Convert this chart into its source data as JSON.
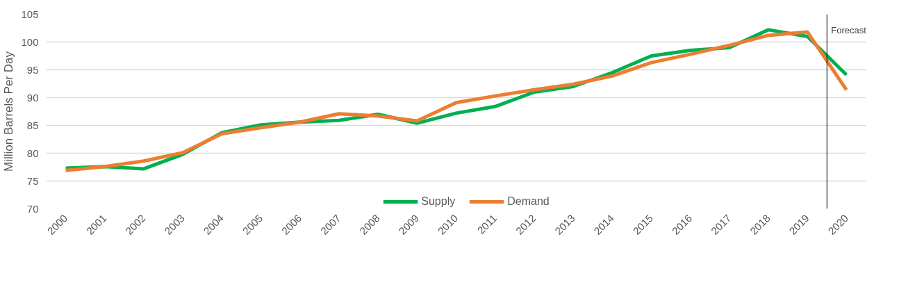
{
  "chart_data": {
    "type": "line",
    "ylabel": "Million Barrels Per Day",
    "x": [
      2000,
      2001,
      2002,
      2003,
      2004,
      2005,
      2006,
      2007,
      2008,
      2009,
      2010,
      2011,
      2012,
      2013,
      2014,
      2015,
      2016,
      2017,
      2018,
      2019,
      2020
    ],
    "series": [
      {
        "name": "Supply",
        "color": "#00b050",
        "values": [
          77.3,
          77.6,
          77.2,
          79.8,
          83.7,
          85.1,
          85.6,
          85.9,
          87.0,
          85.4,
          87.2,
          88.4,
          91.0,
          92.0,
          94.5,
          97.5,
          98.5,
          99.0,
          102.2,
          101.0,
          94.1
        ]
      },
      {
        "name": "Demand",
        "color": "#ed7d31",
        "values": [
          76.9,
          77.6,
          78.6,
          80.1,
          83.5,
          84.6,
          85.6,
          87.1,
          86.7,
          85.8,
          89.1,
          90.3,
          91.4,
          92.4,
          93.9,
          96.3,
          97.8,
          99.4,
          101.2,
          101.8,
          91.4
        ]
      }
    ],
    "xlim": [
      1999.5,
      2020.5
    ],
    "xticks": [
      2000,
      2001,
      2002,
      2003,
      2004,
      2005,
      2006,
      2007,
      2008,
      2009,
      2010,
      2011,
      2012,
      2013,
      2014,
      2015,
      2016,
      2017,
      2018,
      2019,
      2020
    ],
    "ylim": [
      70,
      105
    ],
    "yticks": [
      70,
      75,
      80,
      85,
      90,
      95,
      100,
      105
    ],
    "ref_lines": [
      {
        "axis": "x",
        "value": 2019.5,
        "label": "Forecast",
        "color": "#000000"
      }
    ],
    "grid": "y",
    "legend": "bottom",
    "marker": "none",
    "line_style": "solid"
  }
}
